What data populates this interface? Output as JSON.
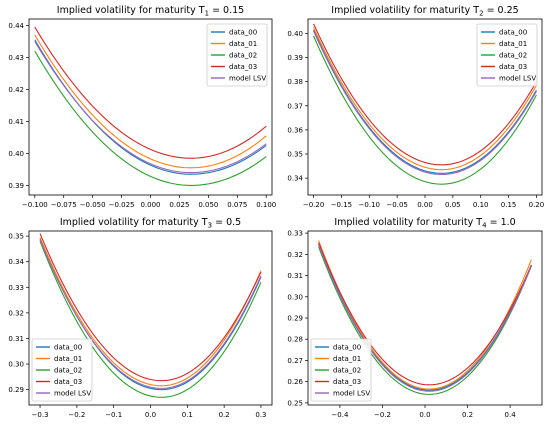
{
  "chart_data": [
    {
      "type": "line",
      "title": "Implied volatility for maturity T",
      "title_sub": "1",
      "title_value": " = 0.15",
      "xlim": [
        -0.105,
        0.105
      ],
      "ylim": [
        0.387,
        0.442
      ],
      "xticks": [
        -0.1,
        -0.075,
        -0.05,
        -0.025,
        0.0,
        0.025,
        0.05,
        0.075,
        0.1
      ],
      "xtick_labels": [
        "−0.100",
        "−0.075",
        "−0.050",
        "−0.025",
        "0.000",
        "0.025",
        "0.050",
        "0.075",
        "0.100"
      ],
      "yticks": [
        0.39,
        0.4,
        0.41,
        0.42,
        0.43,
        0.44
      ],
      "ytick_labels": [
        "0.39",
        "0.40",
        "0.41",
        "0.42",
        "0.43",
        "0.44"
      ],
      "legend_position": "top-right",
      "xmin": -0.1,
      "xmax": 0.1,
      "xmid": 0.035,
      "series": [
        {
          "name": "data_00",
          "color": "#1f77b4",
          "y_left": 0.4355,
          "y_min": 0.3935,
          "y_right": 0.4025
        },
        {
          "name": "data_01",
          "color": "#ff7f0e",
          "y_left": 0.437,
          "y_min": 0.3955,
          "y_right": 0.4055
        },
        {
          "name": "data_02",
          "color": "#2ca02c",
          "y_left": 0.432,
          "y_min": 0.39,
          "y_right": 0.399
        },
        {
          "name": "data_03",
          "color": "#d62728",
          "y_left": 0.4395,
          "y_min": 0.3985,
          "y_right": 0.4085
        },
        {
          "name": "model LSV",
          "color": "#9467bd",
          "y_left": 0.435,
          "y_min": 0.394,
          "y_right": 0.403
        }
      ]
    },
    {
      "type": "line",
      "title": "Implied volatility for maturity T",
      "title_sub": "2",
      "title_value": " = 0.25",
      "xlim": [
        -0.21,
        0.21
      ],
      "ylim": [
        0.333,
        0.406
      ],
      "xticks": [
        -0.2,
        -0.15,
        -0.1,
        -0.05,
        0.0,
        0.05,
        0.1,
        0.15,
        0.2
      ],
      "xtick_labels": [
        "−0.20",
        "−0.15",
        "−0.10",
        "−0.05",
        "0.00",
        "0.05",
        "0.10",
        "0.15",
        "0.20"
      ],
      "yticks": [
        0.34,
        0.35,
        0.36,
        0.37,
        0.38,
        0.39,
        0.4
      ],
      "ytick_labels": [
        "0.34",
        "0.35",
        "0.36",
        "0.37",
        "0.38",
        "0.39",
        "0.40"
      ],
      "legend_position": "top-right",
      "xmin": -0.2,
      "xmax": 0.2,
      "xmid": 0.03,
      "series": [
        {
          "name": "data_00",
          "color": "#1f77b4",
          "y_left": 0.4015,
          "y_min": 0.342,
          "y_right": 0.3765
        },
        {
          "name": "data_01",
          "color": "#ff7f0e",
          "y_left": 0.4025,
          "y_min": 0.3435,
          "y_right": 0.3785
        },
        {
          "name": "data_02",
          "color": "#2ca02c",
          "y_left": 0.399,
          "y_min": 0.3375,
          "y_right": 0.3745
        },
        {
          "name": "data_03",
          "color": "#d62728",
          "y_left": 0.404,
          "y_min": 0.3455,
          "y_right": 0.38
        },
        {
          "name": "model LSV",
          "color": "#9467bd",
          "y_left": 0.401,
          "y_min": 0.3415,
          "y_right": 0.376
        }
      ]
    },
    {
      "type": "line",
      "title": "Implied volatility for maturity T",
      "title_sub": "3",
      "title_value": " = 0.5",
      "xlim": [
        -0.33,
        0.33
      ],
      "ylim": [
        0.284,
        0.352
      ],
      "xticks": [
        -0.3,
        -0.2,
        -0.1,
        0.0,
        0.1,
        0.2,
        0.3
      ],
      "xtick_labels": [
        "−0.3",
        "−0.2",
        "−0.1",
        "0.0",
        "0.1",
        "0.2",
        "0.3"
      ],
      "yticks": [
        0.29,
        0.3,
        0.31,
        0.32,
        0.33,
        0.34,
        0.35
      ],
      "ytick_labels": [
        "0.29",
        "0.30",
        "0.31",
        "0.32",
        "0.33",
        "0.34",
        "0.35"
      ],
      "legend_position": "bottom-left",
      "xmin": -0.3,
      "xmax": 0.3,
      "xmid": 0.03,
      "series": [
        {
          "name": "data_00",
          "color": "#1f77b4",
          "y_left": 0.349,
          "y_min": 0.29,
          "y_right": 0.334
        },
        {
          "name": "data_01",
          "color": "#ff7f0e",
          "y_left": 0.3495,
          "y_min": 0.2915,
          "y_right": 0.3365
        },
        {
          "name": "data_02",
          "color": "#2ca02c",
          "y_left": 0.348,
          "y_min": 0.287,
          "y_right": 0.332
        },
        {
          "name": "data_03",
          "color": "#d62728",
          "y_left": 0.351,
          "y_min": 0.2935,
          "y_right": 0.336
        },
        {
          "name": "model LSV",
          "color": "#9467bd",
          "y_left": 0.3485,
          "y_min": 0.2905,
          "y_right": 0.3345
        }
      ]
    },
    {
      "type": "line",
      "title": "Implied volatility for maturity T",
      "title_sub": "4",
      "title_value": " = 1.0",
      "xlim": [
        -0.55,
        0.55
      ],
      "ylim": [
        0.249,
        0.331
      ],
      "xticks": [
        -0.4,
        -0.2,
        0.0,
        0.2,
        0.4
      ],
      "xtick_labels": [
        "−0.4",
        "−0.2",
        "0.0",
        "0.2",
        "0.4"
      ],
      "yticks": [
        0.25,
        0.26,
        0.27,
        0.28,
        0.29,
        0.3,
        0.31,
        0.32,
        0.33
      ],
      "ytick_labels": [
        "0.25",
        "0.26",
        "0.27",
        "0.28",
        "0.29",
        "0.30",
        "0.31",
        "0.32",
        "0.33"
      ],
      "legend_position": "bottom-left",
      "xmin": -0.5,
      "xmax": 0.5,
      "xmid": 0.02,
      "series": [
        {
          "name": "data_00",
          "color": "#1f77b4",
          "y_left": 0.325,
          "y_min": 0.256,
          "y_right": 0.315
        },
        {
          "name": "data_01",
          "color": "#ff7f0e",
          "y_left": 0.3265,
          "y_min": 0.2565,
          "y_right": 0.3175
        },
        {
          "name": "data_02",
          "color": "#2ca02c",
          "y_left": 0.3235,
          "y_min": 0.254,
          "y_right": 0.3145
        },
        {
          "name": "data_03",
          "color": "#d62728",
          "y_left": 0.3255,
          "y_min": 0.2585,
          "y_right": 0.315
        },
        {
          "name": "model LSV",
          "color": "#9467bd",
          "y_left": 0.3245,
          "y_min": 0.2555,
          "y_right": 0.3145
        }
      ]
    }
  ]
}
